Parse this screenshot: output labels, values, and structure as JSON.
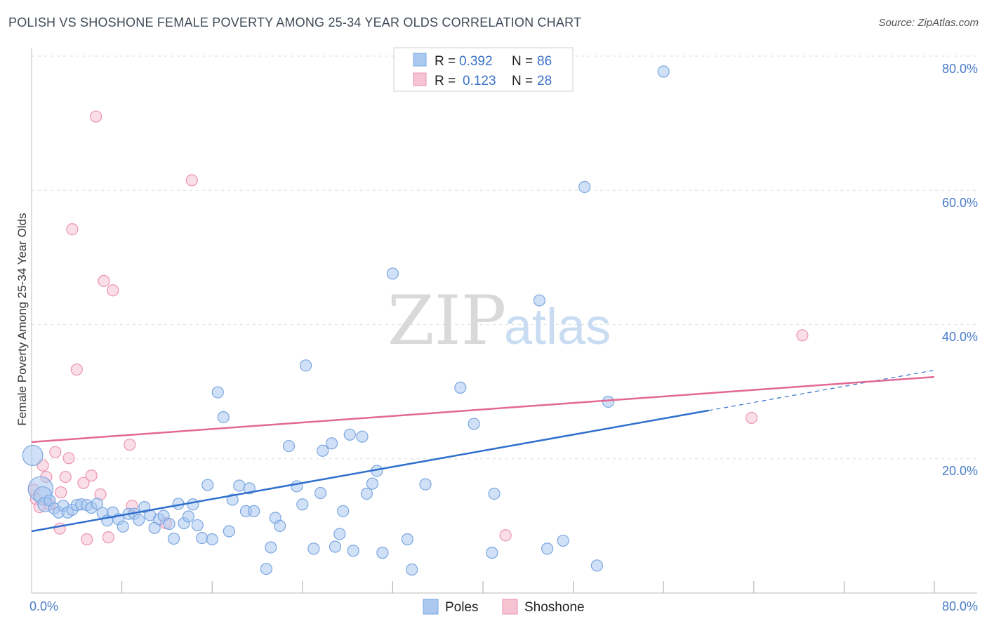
{
  "header": {
    "title": "POLISH VS SHOSHONE FEMALE POVERTY AMONG 25-34 YEAR OLDS CORRELATION CHART",
    "source": "Source: ZipAtlas.com"
  },
  "watermark": {
    "zip": "ZIP",
    "atlas": "atlas"
  },
  "colors": {
    "poles_fill": "#aac8f0",
    "poles_stroke": "#7aa6e0",
    "poles_line": "#2f6fcc",
    "shoshone_fill": "#f6c3d3",
    "shoshone_stroke": "#eb93b1",
    "shoshone_line": "#e26892",
    "tick_text": "#4a7cc9",
    "grid": "#dddddd"
  },
  "legend": {
    "rows": [
      {
        "r_label": "R =",
        "r_value": "0.392",
        "n_label": "N =",
        "n_value": "86"
      },
      {
        "r_label": "R =",
        "r_value": "0.123",
        "n_label": "N =",
        "n_value": "28"
      }
    ]
  },
  "bottom_legend": {
    "poles": "Poles",
    "shoshone": "Shoshone"
  },
  "axis_text": {
    "ylabel": "Female Poverty Among 25-34 Year Olds",
    "y_ticks": [
      "80.0%",
      "60.0%",
      "40.0%",
      "20.0%"
    ],
    "x_min": "0.0%",
    "x_max": "80.0%"
  },
  "chart_data": {
    "type": "scatter",
    "title": "POLISH VS SHOSHONE FEMALE POVERTY AMONG 25-34 YEAR OLDS CORRELATION CHART",
    "xlabel": "",
    "ylabel": "Female Poverty Among 25-34 Year Olds",
    "xlim": [
      0,
      80
    ],
    "ylim": [
      0,
      80
    ],
    "y_tick_values": [
      80,
      60,
      40,
      20
    ],
    "grid": true,
    "legend_placement": "top-center",
    "series": [
      {
        "name": "Poles",
        "R": 0.392,
        "N": 86,
        "trend": {
          "x0": 0,
          "y0": 9.2,
          "x1": 60,
          "y1": 27.2,
          "dashed_to_x": 80,
          "dashed_to_y": 33.2
        },
        "points": [
          [
            0.1,
            20.5,
            1.8
          ],
          [
            0.8,
            15.5,
            2.2
          ],
          [
            1.0,
            14.5,
            1.6
          ],
          [
            1.2,
            13.2,
            1.3
          ],
          [
            1.6,
            13.8,
            1
          ],
          [
            2.0,
            12.6,
            1
          ],
          [
            2.4,
            12.0,
            1
          ],
          [
            2.8,
            13.0,
            1
          ],
          [
            3.2,
            12.0,
            1
          ],
          [
            3.6,
            12.4,
            1
          ],
          [
            4.0,
            13.1,
            1
          ],
          [
            4.4,
            13.2,
            1
          ],
          [
            4.9,
            13.1,
            1
          ],
          [
            5.3,
            12.7,
            1
          ],
          [
            5.8,
            13.3,
            1
          ],
          [
            6.3,
            11.9,
            1
          ],
          [
            6.7,
            10.8,
            1
          ],
          [
            7.2,
            12.0,
            1
          ],
          [
            7.7,
            11.0,
            1
          ],
          [
            8.1,
            9.9,
            1
          ],
          [
            8.6,
            11.8,
            1
          ],
          [
            9.1,
            11.8,
            1
          ],
          [
            9.5,
            10.9,
            1
          ],
          [
            10.0,
            12.8,
            1
          ],
          [
            10.5,
            11.6,
            1
          ],
          [
            10.9,
            9.7,
            1
          ],
          [
            11.3,
            11.0,
            1
          ],
          [
            11.7,
            11.5,
            1
          ],
          [
            12.2,
            10.3,
            1
          ],
          [
            12.6,
            8.1,
            1
          ],
          [
            13.0,
            13.3,
            1
          ],
          [
            13.5,
            10.4,
            1
          ],
          [
            13.9,
            11.4,
            1
          ],
          [
            14.3,
            13.2,
            1
          ],
          [
            14.7,
            10.1,
            1
          ],
          [
            15.1,
            8.2,
            1
          ],
          [
            15.6,
            16.1,
            1
          ],
          [
            16.0,
            8.0,
            1
          ],
          [
            16.5,
            29.9,
            1
          ],
          [
            17.0,
            26.2,
            1
          ],
          [
            17.5,
            9.2,
            1
          ],
          [
            17.8,
            13.9,
            1
          ],
          [
            18.4,
            16.0,
            1
          ],
          [
            19.0,
            12.2,
            1
          ],
          [
            19.3,
            15.6,
            1
          ],
          [
            19.7,
            12.2,
            1
          ],
          [
            20.8,
            3.6,
            1
          ],
          [
            21.2,
            6.8,
            1
          ],
          [
            21.6,
            11.2,
            1
          ],
          [
            22.0,
            10.0,
            1
          ],
          [
            22.8,
            21.9,
            1
          ],
          [
            23.5,
            15.9,
            1
          ],
          [
            24.0,
            13.2,
            1
          ],
          [
            24.3,
            33.9,
            1
          ],
          [
            25.0,
            6.6,
            1
          ],
          [
            25.6,
            14.9,
            1
          ],
          [
            25.8,
            21.2,
            1
          ],
          [
            26.6,
            22.3,
            1
          ],
          [
            26.9,
            6.9,
            1
          ],
          [
            27.3,
            8.8,
            1
          ],
          [
            27.6,
            12.2,
            1
          ],
          [
            28.2,
            23.6,
            1
          ],
          [
            28.5,
            6.3,
            1
          ],
          [
            29.3,
            23.3,
            1
          ],
          [
            29.7,
            14.8,
            1
          ],
          [
            30.2,
            16.3,
            1
          ],
          [
            30.6,
            18.2,
            1
          ],
          [
            31.1,
            6.0,
            1
          ],
          [
            32.0,
            47.6,
            1
          ],
          [
            33.3,
            8.0,
            1
          ],
          [
            33.7,
            3.5,
            1
          ],
          [
            34.9,
            16.2,
            1
          ],
          [
            38.0,
            30.6,
            1
          ],
          [
            39.2,
            25.2,
            1
          ],
          [
            40.8,
            6.0,
            1
          ],
          [
            41.0,
            14.8,
            1
          ],
          [
            45.0,
            43.6,
            1
          ],
          [
            45.7,
            6.6,
            1
          ],
          [
            47.1,
            7.8,
            1
          ],
          [
            49.0,
            60.5,
            1
          ],
          [
            50.1,
            4.1,
            1
          ],
          [
            51.1,
            28.5,
            1
          ],
          [
            56.0,
            77.7,
            1
          ]
        ]
      },
      {
        "name": "Shoshone",
        "R": 0.123,
        "N": 28,
        "trend": {
          "x0": 0,
          "y0": 22.5,
          "x1": 80,
          "y1": 32.2
        },
        "points": [
          [
            0.2,
            15.4,
            1
          ],
          [
            0.4,
            14.0,
            1
          ],
          [
            0.7,
            12.8,
            1
          ],
          [
            1.0,
            19.0,
            1
          ],
          [
            1.3,
            17.3,
            1
          ],
          [
            1.6,
            13.2,
            1
          ],
          [
            2.1,
            21.0,
            1
          ],
          [
            2.5,
            9.6,
            1
          ],
          [
            2.6,
            15.0,
            1
          ],
          [
            3.0,
            17.3,
            1
          ],
          [
            3.3,
            20.1,
            1
          ],
          [
            3.6,
            54.2,
            1
          ],
          [
            4.0,
            33.3,
            1
          ],
          [
            4.6,
            16.4,
            1
          ],
          [
            4.9,
            8.0,
            1
          ],
          [
            5.3,
            17.5,
            1
          ],
          [
            5.7,
            71.0,
            1
          ],
          [
            6.1,
            14.7,
            1
          ],
          [
            6.4,
            46.5,
            1
          ],
          [
            6.8,
            8.3,
            1
          ],
          [
            7.2,
            45.1,
            1
          ],
          [
            8.7,
            22.1,
            1
          ],
          [
            8.9,
            13.0,
            1
          ],
          [
            11.9,
            10.4,
            1
          ],
          [
            14.2,
            61.5,
            1
          ],
          [
            42.0,
            8.6,
            1
          ],
          [
            63.8,
            26.1,
            1
          ],
          [
            68.3,
            38.4,
            1
          ]
        ]
      }
    ]
  }
}
